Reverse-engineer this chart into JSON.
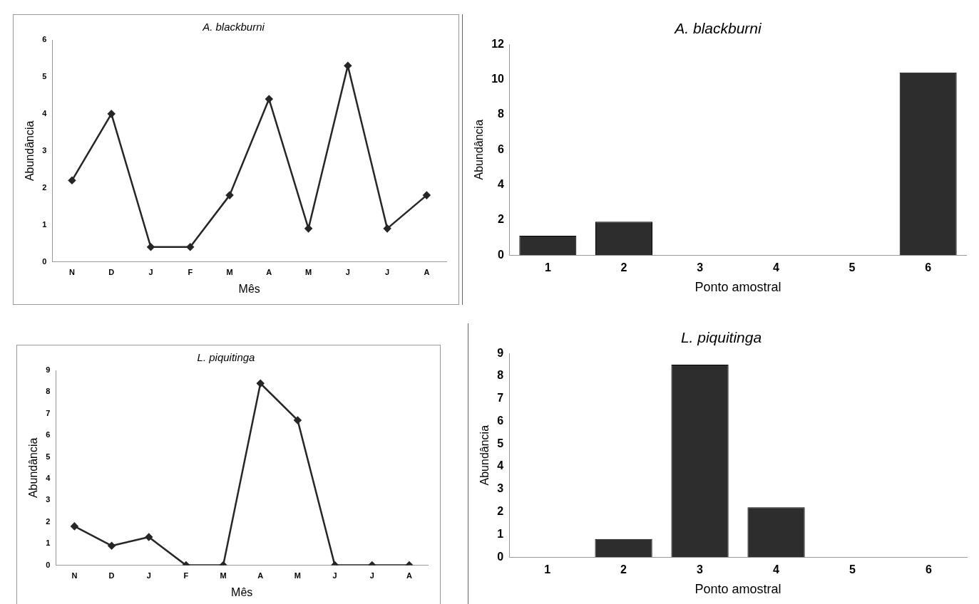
{
  "chart_data": [
    {
      "type": "line",
      "title": "A. blackburni",
      "xlabel": "Mês",
      "ylabel": "Abundância",
      "categories": [
        "N",
        "D",
        "J",
        "F",
        "M",
        "A",
        "M",
        "J",
        "J",
        "A"
      ],
      "values": [
        2.2,
        4,
        0.4,
        0.4,
        1.8,
        4.4,
        0.9,
        5.3,
        0.9,
        1.8
      ],
      "color": "#262626",
      "marker": "diamond",
      "ylim": [
        0,
        6
      ],
      "yticks": [
        0,
        1,
        2,
        3,
        4,
        5,
        6
      ]
    },
    {
      "type": "bar",
      "title": "A. blackburni",
      "xlabel": "Ponto amostral",
      "ylabel": "Abundância",
      "categories": [
        "1",
        "2",
        "3",
        "4",
        "5",
        "6"
      ],
      "values": [
        1.1,
        1.9,
        0,
        0,
        0,
        10.4
      ],
      "color": "#2d2d2d",
      "ylim": [
        0,
        12
      ],
      "yticks": [
        0,
        2,
        4,
        6,
        8,
        10,
        12
      ]
    },
    {
      "type": "line",
      "title": "L. piquitinga",
      "xlabel": "Mês",
      "ylabel": "Abundância",
      "categories": [
        "N",
        "D",
        "J",
        "F",
        "M",
        "A",
        "M",
        "J",
        "J",
        "A"
      ],
      "values": [
        1.8,
        0.9,
        1.3,
        0,
        0,
        8.4,
        6.7,
        0,
        0,
        0
      ],
      "color": "#262626",
      "marker": "diamond",
      "ylim": [
        0,
        9
      ],
      "yticks": [
        0,
        1,
        2,
        3,
        4,
        5,
        6,
        7,
        8,
        9
      ]
    },
    {
      "type": "bar",
      "title": "L. piquitinga",
      "xlabel": "Ponto amostral",
      "ylabel": "Abundância",
      "categories": [
        "1",
        "2",
        "3",
        "4",
        "5",
        "6"
      ],
      "values": [
        0,
        0.8,
        8.5,
        2.2,
        0,
        0
      ],
      "color": "#2d2d2d",
      "ylim": [
        0,
        9
      ],
      "yticks": [
        0,
        1,
        2,
        3,
        4,
        5,
        6,
        7,
        8,
        9
      ]
    }
  ]
}
